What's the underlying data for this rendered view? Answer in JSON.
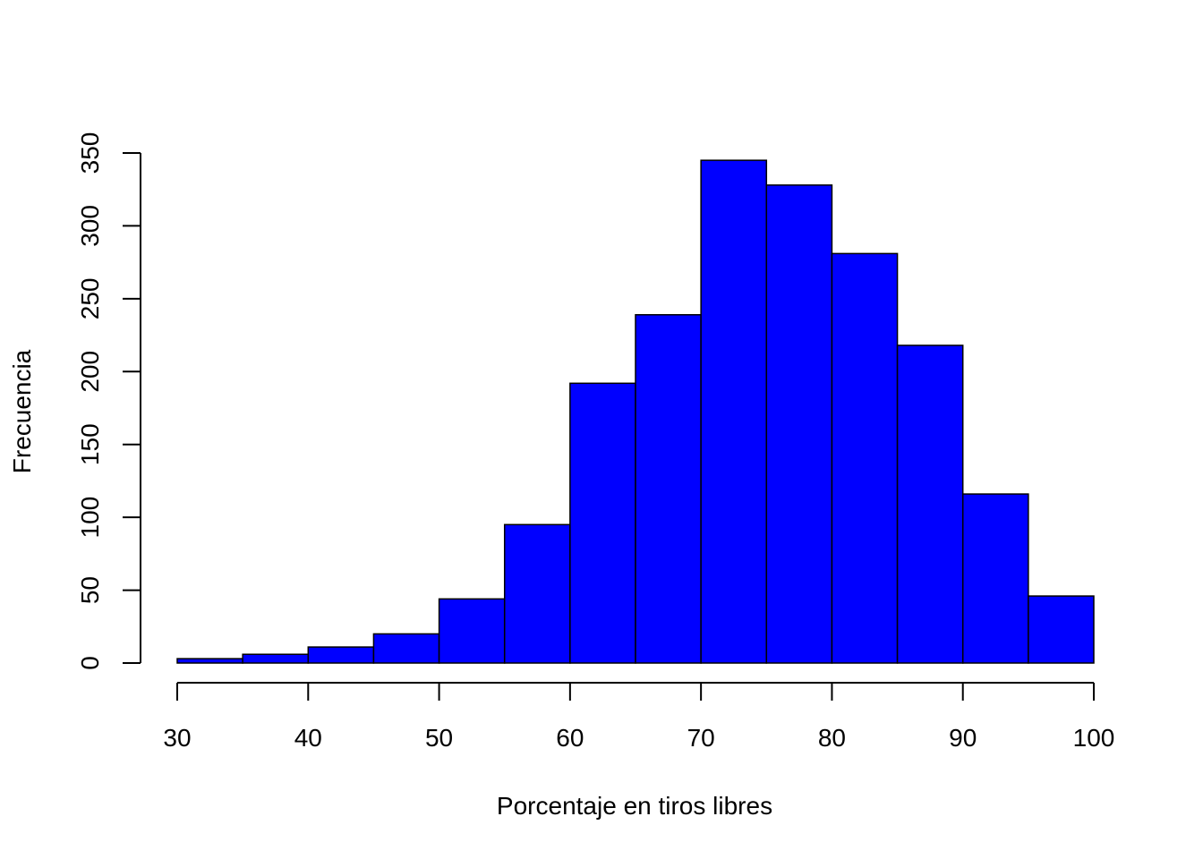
{
  "chart_data": {
    "type": "bar",
    "subtype": "histogram",
    "title": "",
    "xlabel": "Porcentaje en tiros libres",
    "ylabel": "Frecuencia",
    "bins": [
      {
        "start": 30,
        "end": 35,
        "count": 3
      },
      {
        "start": 35,
        "end": 40,
        "count": 6
      },
      {
        "start": 40,
        "end": 45,
        "count": 11
      },
      {
        "start": 45,
        "end": 50,
        "count": 20
      },
      {
        "start": 50,
        "end": 55,
        "count": 44
      },
      {
        "start": 55,
        "end": 60,
        "count": 95
      },
      {
        "start": 60,
        "end": 65,
        "count": 192
      },
      {
        "start": 65,
        "end": 70,
        "count": 239
      },
      {
        "start": 70,
        "end": 75,
        "count": 345
      },
      {
        "start": 75,
        "end": 80,
        "count": 328
      },
      {
        "start": 80,
        "end": 85,
        "count": 281
      },
      {
        "start": 85,
        "end": 90,
        "count": 218
      },
      {
        "start": 90,
        "end": 95,
        "count": 116
      },
      {
        "start": 95,
        "end": 100,
        "count": 46
      }
    ],
    "xlim": [
      30,
      100
    ],
    "ylim": [
      0,
      350
    ],
    "xticks": [
      30,
      40,
      50,
      60,
      70,
      80,
      90,
      100
    ],
    "yticks": [
      0,
      50,
      100,
      150,
      200,
      250,
      300,
      350
    ],
    "bar_color": "#0000ff",
    "edge_color": "#000000",
    "grid": false,
    "legend": "none"
  }
}
